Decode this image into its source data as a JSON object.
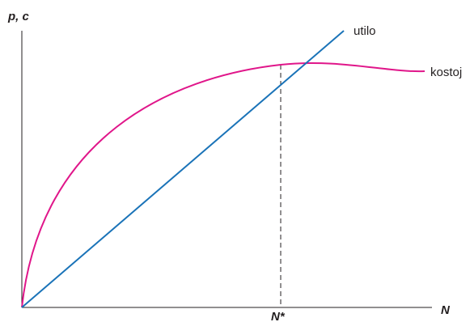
{
  "axes": {
    "y_label": "p, c",
    "x_label": "N",
    "marker_label": "N*"
  },
  "curves": {
    "linear_label": "utilo",
    "concave_label": "kostoj"
  },
  "colors": {
    "linear": "#1a73b8",
    "concave": "#e0168a",
    "axis": "#231f20",
    "guide": "#231f20"
  }
}
